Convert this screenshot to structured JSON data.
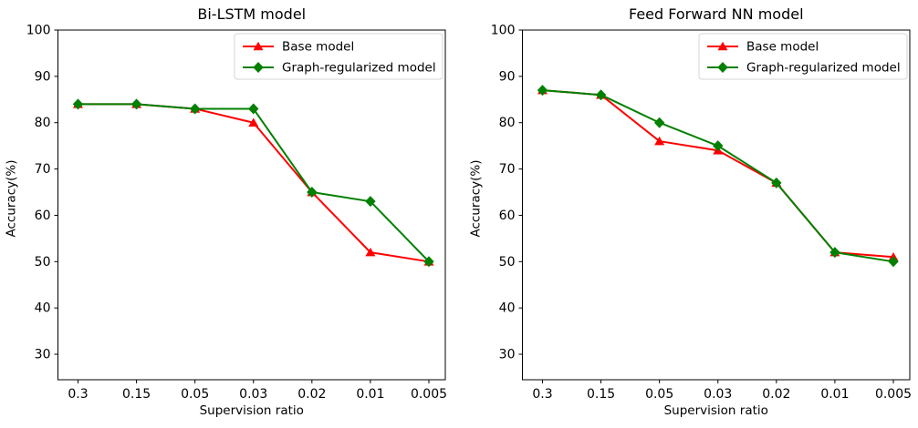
{
  "figure": {
    "background": "#ffffff",
    "text_color": "#000000",
    "spine_color": "#000000",
    "legend_border_color": "#d5d5d5",
    "accent_red": "#ff0000",
    "accent_green": "#008000"
  },
  "chart_data": [
    {
      "type": "line",
      "title": "Bi-LSTM model",
      "xlabel": "Supervision ratio",
      "ylabel": "Accuracy(%)",
      "categories": [
        "0.3",
        "0.15",
        "0.05",
        "0.03",
        "0.02",
        "0.01",
        "0.005"
      ],
      "yticks": [
        100,
        90,
        80,
        70,
        60,
        50,
        40,
        30
      ],
      "ylim": [
        24.5,
        100
      ],
      "grid": false,
      "legend_position": "upper right",
      "series": [
        {
          "name": "Base model",
          "color": "#ff0000",
          "marker": "triangle-up",
          "values": [
            84,
            84,
            83,
            80,
            65,
            52,
            50
          ]
        },
        {
          "name": "Graph-regularized model",
          "color": "#008000",
          "marker": "diamond",
          "values": [
            84,
            84,
            83,
            83,
            65,
            63,
            50
          ]
        }
      ]
    },
    {
      "type": "line",
      "title": "Feed Forward NN model",
      "xlabel": "Supervision ratio",
      "ylabel": "Accuracy(%)",
      "categories": [
        "0.3",
        "0.15",
        "0.05",
        "0.03",
        "0.02",
        "0.01",
        "0.005"
      ],
      "yticks": [
        100,
        90,
        80,
        70,
        60,
        50,
        40,
        30
      ],
      "ylim": [
        24.5,
        100
      ],
      "grid": false,
      "legend_position": "upper right",
      "series": [
        {
          "name": "Base model",
          "color": "#ff0000",
          "marker": "triangle-up",
          "values": [
            87,
            86,
            76,
            74,
            67,
            52,
            51
          ]
        },
        {
          "name": "Graph-regularized model",
          "color": "#008000",
          "marker": "diamond",
          "values": [
            87,
            86,
            80,
            75,
            67,
            52,
            50
          ]
        }
      ]
    }
  ]
}
